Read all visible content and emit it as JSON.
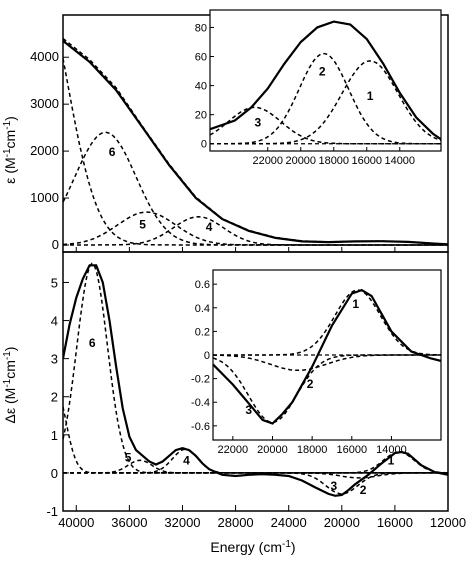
{
  "chart_data": [
    {
      "id": "absorption",
      "type": "line",
      "ylabel_parts": [
        "ε (M",
        "-1",
        "cm",
        "-1",
        ")"
      ],
      "xlim": [
        41000,
        12000
      ],
      "ylim": [
        -150,
        4900
      ],
      "yticks": [
        0,
        1000,
        2000,
        3000,
        4000
      ],
      "series": [
        {
          "role": "experimental",
          "style": "solid",
          "x": [
            41000,
            39000,
            37000,
            35000,
            33000,
            31000,
            29000,
            27000,
            25000,
            23000,
            21000,
            19000,
            17000,
            15000,
            13000,
            12000
          ],
          "y": [
            4350,
            3900,
            3300,
            2500,
            1700,
            1000,
            550,
            300,
            150,
            75,
            60,
            75,
            80,
            65,
            30,
            15
          ]
        },
        {
          "role": "fit-sum",
          "style": "dashed",
          "x": [
            41000,
            39000,
            37000,
            35000,
            33000,
            31000,
            29000,
            27000,
            25000,
            23000,
            21000,
            19000,
            17000,
            15000,
            13000,
            12000
          ],
          "y": [
            4400,
            3950,
            3350,
            2520,
            1720,
            1020,
            560,
            310,
            160,
            85,
            65,
            78,
            82,
            66,
            30,
            15
          ]
        },
        {
          "role": "band",
          "label": "6",
          "style": "dashed",
          "center": 37800,
          "height": 2400,
          "width": 2300
        },
        {
          "role": "band",
          "label": "5",
          "style": "dashed",
          "center": 34700,
          "height": 700,
          "width": 2200
        },
        {
          "role": "band",
          "label": "4",
          "style": "dashed",
          "center": 30800,
          "height": 600,
          "width": 1900
        },
        {
          "role": "band",
          "label": "",
          "style": "dashed",
          "center": 43000,
          "height": 5800,
          "width": 2300
        }
      ],
      "inset": {
        "xlim": [
          25500,
          11500
        ],
        "ylim": [
          -5,
          92
        ],
        "xticks": [
          22000,
          20000,
          18000,
          16000,
          14000
        ],
        "yticks": [
          0,
          20,
          40,
          60,
          80
        ],
        "series": [
          {
            "role": "experimental",
            "style": "solid",
            "x": [
              25500,
              24000,
              23000,
              22000,
              21000,
              20000,
              19000,
              18000,
              17000,
              16000,
              15000,
              14000,
              13000,
              12000,
              11500
            ],
            "y": [
              10,
              16,
              25,
              38,
              55,
              70,
              80,
              84,
              82,
              72,
              55,
              35,
              18,
              7,
              3
            ]
          },
          {
            "role": "band",
            "label": "1",
            "style": "dashed",
            "center": 15800,
            "height": 57,
            "width": 1700
          },
          {
            "role": "band",
            "label": "2",
            "style": "dashed",
            "center": 18600,
            "height": 62,
            "width": 1500
          },
          {
            "role": "band",
            "label": "3",
            "style": "dashed",
            "center": 22800,
            "height": 25,
            "width": 1600
          }
        ],
        "labels": [
          {
            "text": "1",
            "x": 15800,
            "y": 30
          },
          {
            "text": "2",
            "x": 18700,
            "y": 47
          },
          {
            "text": "3",
            "x": 22600,
            "y": 12
          }
        ]
      },
      "labels": [
        {
          "text": "6",
          "x": 37300,
          "y": 1900
        },
        {
          "text": "5",
          "x": 35000,
          "y": 350
        },
        {
          "text": "4",
          "x": 30000,
          "y": 300
        }
      ]
    },
    {
      "id": "cd",
      "type": "line",
      "xlabel_parts": [
        "Energy (cm",
        "-1",
        ")"
      ],
      "ylabel_parts": [
        "Δε (M",
        "-1",
        "cm",
        "-1",
        ")"
      ],
      "xlim": [
        41000,
        12000
      ],
      "ylim": [
        -1,
        5.8
      ],
      "xticks": [
        40000,
        36000,
        32000,
        28000,
        24000,
        20000,
        16000,
        12000
      ],
      "yticks": [
        -1,
        0,
        1,
        2,
        3,
        4,
        5
      ],
      "series": [
        {
          "role": "experimental",
          "style": "solid",
          "x": [
            41000,
            40500,
            40000,
            39500,
            39000,
            38500,
            38000,
            37500,
            37000,
            36500,
            36000,
            35500,
            35000,
            34500,
            34000,
            33500,
            33000,
            32500,
            32000,
            31500,
            31000,
            30500,
            30000,
            29500,
            29000,
            28000,
            27000,
            26000,
            25000,
            24000,
            23000,
            22000,
            21000,
            20500,
            20000,
            19500,
            19000,
            18000,
            17000,
            16000,
            15500,
            15000,
            14000,
            13000,
            12000
          ],
          "y": [
            3.0,
            3.9,
            4.6,
            5.1,
            5.45,
            5.45,
            5.0,
            4.0,
            2.8,
            1.7,
            0.95,
            0.6,
            0.45,
            0.3,
            0.22,
            0.3,
            0.45,
            0.6,
            0.65,
            0.6,
            0.45,
            0.25,
            0.1,
            0.02,
            -0.05,
            -0.08,
            -0.05,
            -0.03,
            -0.05,
            -0.08,
            -0.2,
            -0.38,
            -0.55,
            -0.6,
            -0.58,
            -0.45,
            -0.3,
            -0.05,
            0.25,
            0.52,
            0.55,
            0.5,
            0.2,
            0.02,
            -0.05
          ]
        },
        {
          "role": "band",
          "label": "6",
          "style": "dashed",
          "center": 38800,
          "height": 5.5,
          "width": 1150
        },
        {
          "role": "band",
          "label": "5",
          "style": "dashed",
          "center": 35200,
          "height": 0.33,
          "width": 900
        },
        {
          "role": "band",
          "label": "4",
          "style": "dashed",
          "center": 31800,
          "height": 0.62,
          "width": 950
        },
        {
          "role": "band",
          "label": "3",
          "style": "dashed",
          "center": 20000,
          "height": -0.55,
          "width": 1200
        },
        {
          "role": "band",
          "label": "2",
          "style": "dashed",
          "center": 18700,
          "height": -0.13,
          "width": 1400
        },
        {
          "role": "band",
          "label": "1",
          "style": "dashed",
          "center": 15700,
          "height": 0.55,
          "width": 1150
        },
        {
          "role": "band",
          "label": "",
          "style": "dashed",
          "center": 41600,
          "height": 2.3,
          "width": 800
        }
      ],
      "inset": {
        "xlim": [
          23000,
          11500
        ],
        "ylim": [
          -0.72,
          0.72
        ],
        "xticks": [
          22000,
          20000,
          18000,
          16000,
          14000
        ],
        "yticks": [
          -0.6,
          -0.4,
          -0.2,
          0.0,
          0.2,
          0.4,
          0.6
        ],
        "ytick_labels": [
          "-0.6",
          "-0.4",
          "-0.2",
          "0",
          "0.2",
          "0.4",
          "0.6"
        ],
        "series": [
          {
            "role": "experimental",
            "style": "solid",
            "x": [
              23000,
              22000,
              21000,
              20500,
              20000,
              19500,
              19000,
              18000,
              17000,
              16000,
              15500,
              15000,
              14000,
              13000,
              12000,
              11500
            ],
            "y": [
              -0.08,
              -0.25,
              -0.45,
              -0.55,
              -0.58,
              -0.5,
              -0.4,
              -0.1,
              0.25,
              0.52,
              0.55,
              0.5,
              0.2,
              0.03,
              -0.03,
              -0.05
            ]
          },
          {
            "role": "band",
            "label": "1",
            "style": "dashed",
            "center": 15700,
            "height": 0.55,
            "width": 1150
          },
          {
            "role": "band",
            "label": "2",
            "style": "dashed",
            "center": 18700,
            "height": -0.13,
            "width": 1400
          },
          {
            "role": "band",
            "label": "3",
            "style": "dashed",
            "center": 20000,
            "height": -0.57,
            "width": 1200
          }
        ],
        "labels": [
          {
            "text": "1",
            "x": 15800,
            "y": 0.4
          },
          {
            "text": "2",
            "x": 18100,
            "y": -0.28
          },
          {
            "text": "3",
            "x": 21200,
            "y": -0.5
          }
        ]
      },
      "labels": [
        {
          "text": "6",
          "x": 38800,
          "y": 3.3
        },
        {
          "text": "5",
          "x": 36100,
          "y": 0.3
        },
        {
          "text": "4",
          "x": 31700,
          "y": 0.22
        },
        {
          "text": "3",
          "x": 20600,
          "y": -0.45
        },
        {
          "text": "2",
          "x": 18400,
          "y": -0.55
        },
        {
          "text": "1",
          "x": 16300,
          "y": 0.22
        }
      ]
    }
  ]
}
